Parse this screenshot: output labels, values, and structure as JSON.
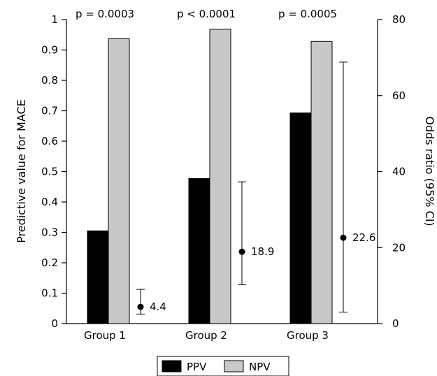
{
  "chart_data": {
    "type": "bar",
    "categories": [
      "Group 1",
      "Group 2",
      "Group 3"
    ],
    "series": [
      {
        "name": "PPV",
        "values": [
          0.305,
          0.477,
          0.693
        ],
        "color": "#000000"
      },
      {
        "name": "NPV",
        "values": [
          0.937,
          0.968,
          0.928
        ],
        "color": "#c8c8c8"
      }
    ],
    "ylabel": "Predictive value for MACE",
    "ylim": [
      0,
      1
    ],
    "yticks": [
      "0",
      "0.1",
      "0.2",
      "0.3",
      "0.4",
      "0.5",
      "0.6",
      "0.7",
      "0.8",
      "0.9",
      "1"
    ],
    "y2label": "Odds ratio (95% CI)",
    "y2lim": [
      0,
      80
    ],
    "y2ticks": [
      "0",
      "20",
      "40",
      "60",
      "80"
    ],
    "p_values": [
      "p = 0.0003",
      "p < 0.0001",
      "p = 0.0005"
    ],
    "odds_ratios": [
      {
        "value": 4.4,
        "lower": 2.5,
        "upper": 9.0,
        "label": "4.4"
      },
      {
        "value": 18.9,
        "lower": 10.2,
        "upper": 37.3,
        "label": "18.9"
      },
      {
        "value": 22.6,
        "lower": 3.0,
        "upper": 68.8,
        "label": "22.6"
      }
    ],
    "legend": {
      "position": "bottom-center",
      "items": [
        "PPV",
        "NPV"
      ]
    },
    "grid": false
  }
}
